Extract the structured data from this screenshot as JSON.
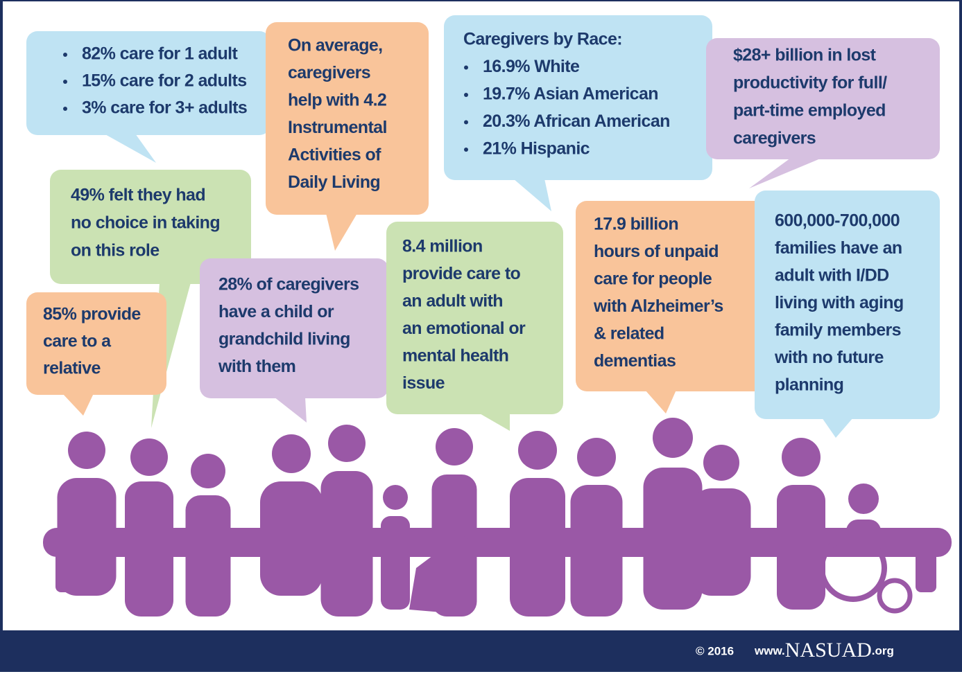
{
  "bubbles": [
    {
      "items": [
        "82%  care for 1 adult",
        "15% care for 2 adults",
        "3% care for 3+ adults"
      ]
    },
    {
      "lines": [
        "On average,",
        "caregivers",
        "help with 4.2",
        "Instrumental",
        "Activities of",
        "Daily Living"
      ]
    },
    {
      "heading": "Caregivers by Race:",
      "items": [
        "16.9% White",
        "19.7% Asian American",
        "20.3% African American",
        "21% Hispanic"
      ]
    },
    {
      "lines": [
        "$28+ billion in lost",
        "productivity for full/",
        "part-time employed",
        "caregivers"
      ]
    },
    {
      "lines": [
        "49% felt they had",
        "no choice in taking",
        "on this role"
      ]
    },
    {
      "lines": [
        "85% provide",
        "care to a",
        "relative"
      ]
    },
    {
      "lines": [
        "28% of caregivers",
        "have a child or",
        "grandchild living",
        "with them"
      ]
    },
    {
      "lines": [
        "8.4 million",
        "provide care to",
        "an adult with",
        "an emotional or",
        "mental health",
        "issue"
      ]
    },
    {
      "lines": [
        "17.9 billion",
        "hours of unpaid",
        "care for people",
        "with Alzheimer’s",
        "& related",
        "dementias"
      ]
    },
    {
      "lines": [
        "600,000-700,000",
        "families have an",
        "adult with I/DD",
        "living with aging",
        "family members",
        "with no future",
        "planning"
      ]
    }
  ],
  "footer": {
    "copyright": "© 2016",
    "site_prefix": "www.",
    "site_name": "NASUAD",
    "site_suffix": ".org"
  }
}
